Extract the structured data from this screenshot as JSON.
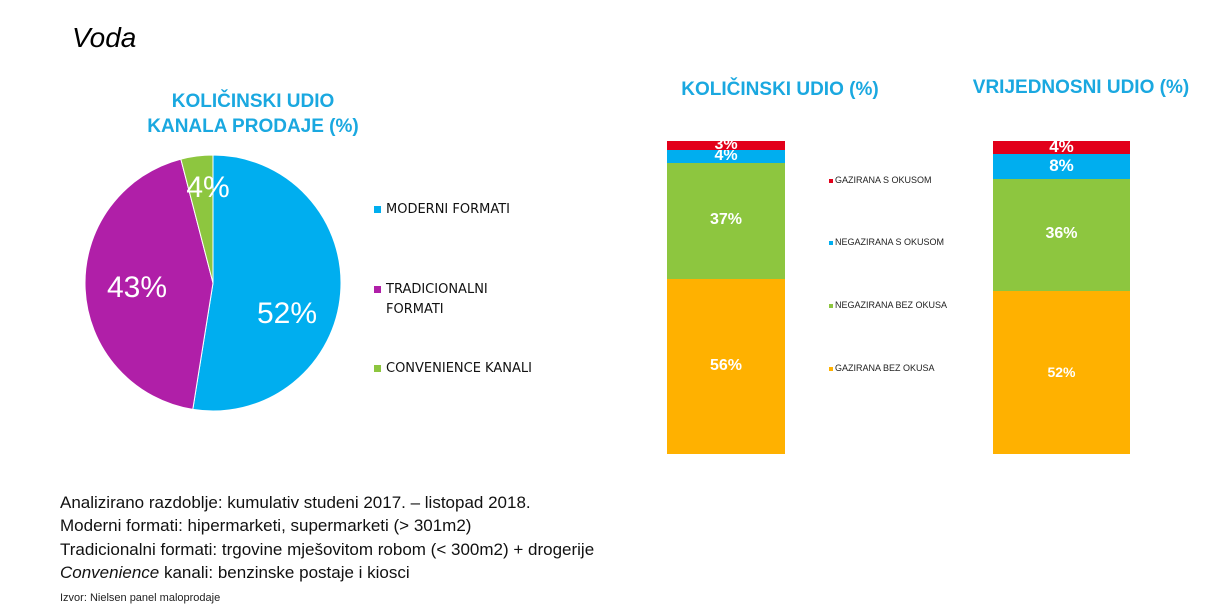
{
  "title": "Voda",
  "chart_data": [
    {
      "type": "pie",
      "title_lines": [
        "KOLIČINSKI UDIO",
        "KANALA PRODAJE (%)"
      ],
      "slices": [
        {
          "name": "MODERNI FORMATI",
          "value": 52,
          "label": "52%",
          "color": "#00aeef"
        },
        {
          "name": "TRADICIONALNI FORMATI",
          "value": 43,
          "label": "43%",
          "color": "#b01fa8"
        },
        {
          "name": "CONVENIENCE KANALI",
          "value": 4,
          "label": "4%",
          "color": "#8dc63f"
        }
      ],
      "legend": [
        {
          "lines": [
            "MODERNI FORMATI"
          ],
          "color": "#00aeef"
        },
        {
          "lines": [
            "TRADICIONALNI",
            "FORMATI"
          ],
          "color": "#b01fa8"
        },
        {
          "lines": [
            "CONVENIENCE KANALI"
          ],
          "color": "#8dc63f"
        }
      ],
      "legend_placement": "right"
    },
    {
      "type": "bar",
      "stacked": true,
      "title": "KOLIČINSKI UDIO (%)",
      "segments": [
        {
          "name": "GAZIRANA BEZ OKUSA",
          "value": 56,
          "label": "56%",
          "color": "#ffb100"
        },
        {
          "name": "NEGAZIRANA BEZ OKUSA",
          "value": 37,
          "label": "37%",
          "color": "#8dc63f"
        },
        {
          "name": "NEGAZIRANA S OKUSOM",
          "value": 4,
          "label": "4%",
          "color": "#00aeef"
        },
        {
          "name": "GAZIRANA S OKUSOM",
          "value": 3,
          "label": "3%",
          "color": "#e2001a"
        }
      ],
      "legend": [
        {
          "name": "GAZIRANA S OKUSOM",
          "color": "#e2001a"
        },
        {
          "name": "NEGAZIRANA S OKUSOM",
          "color": "#00aeef"
        },
        {
          "name": "NEGAZIRANA BEZ OKUSA",
          "color": "#8dc63f"
        },
        {
          "name": "GAZIRANA BEZ OKUSA",
          "color": "#ffb100"
        }
      ]
    },
    {
      "type": "bar",
      "stacked": true,
      "title": "VRIJEDNOSNI UDIO (%)",
      "segments": [
        {
          "name": "GAZIRANA BEZ OKUSA",
          "value": 52,
          "label": "52%",
          "color": "#ffb100"
        },
        {
          "name": "NEGAZIRANA BEZ OKUSA",
          "value": 36,
          "label": "36%",
          "color": "#8dc63f"
        },
        {
          "name": "NEGAZIRANA S OKUSOM",
          "value": 8,
          "label": "8%",
          "color": "#00aeef"
        },
        {
          "name": "GAZIRANA S OKUSOM",
          "value": 4,
          "label": "4%",
          "color": "#e2001a"
        }
      ]
    }
  ],
  "notes": [
    "Analizirano razdoblje: kumulativ studeni 2017. – listopad 2018.",
    "Moderni formati: hipermarketi, supermarketi (> 301m2)",
    "Tradicionalni formati: trgovine mješovitom robom (< 300m2) + drogerije"
  ],
  "note_convenience": {
    "italic": "Convenience",
    "rest": " kanali: benzinske postaje i kiosci"
  },
  "source": "Izvor: Nielsen panel maloprodaje"
}
